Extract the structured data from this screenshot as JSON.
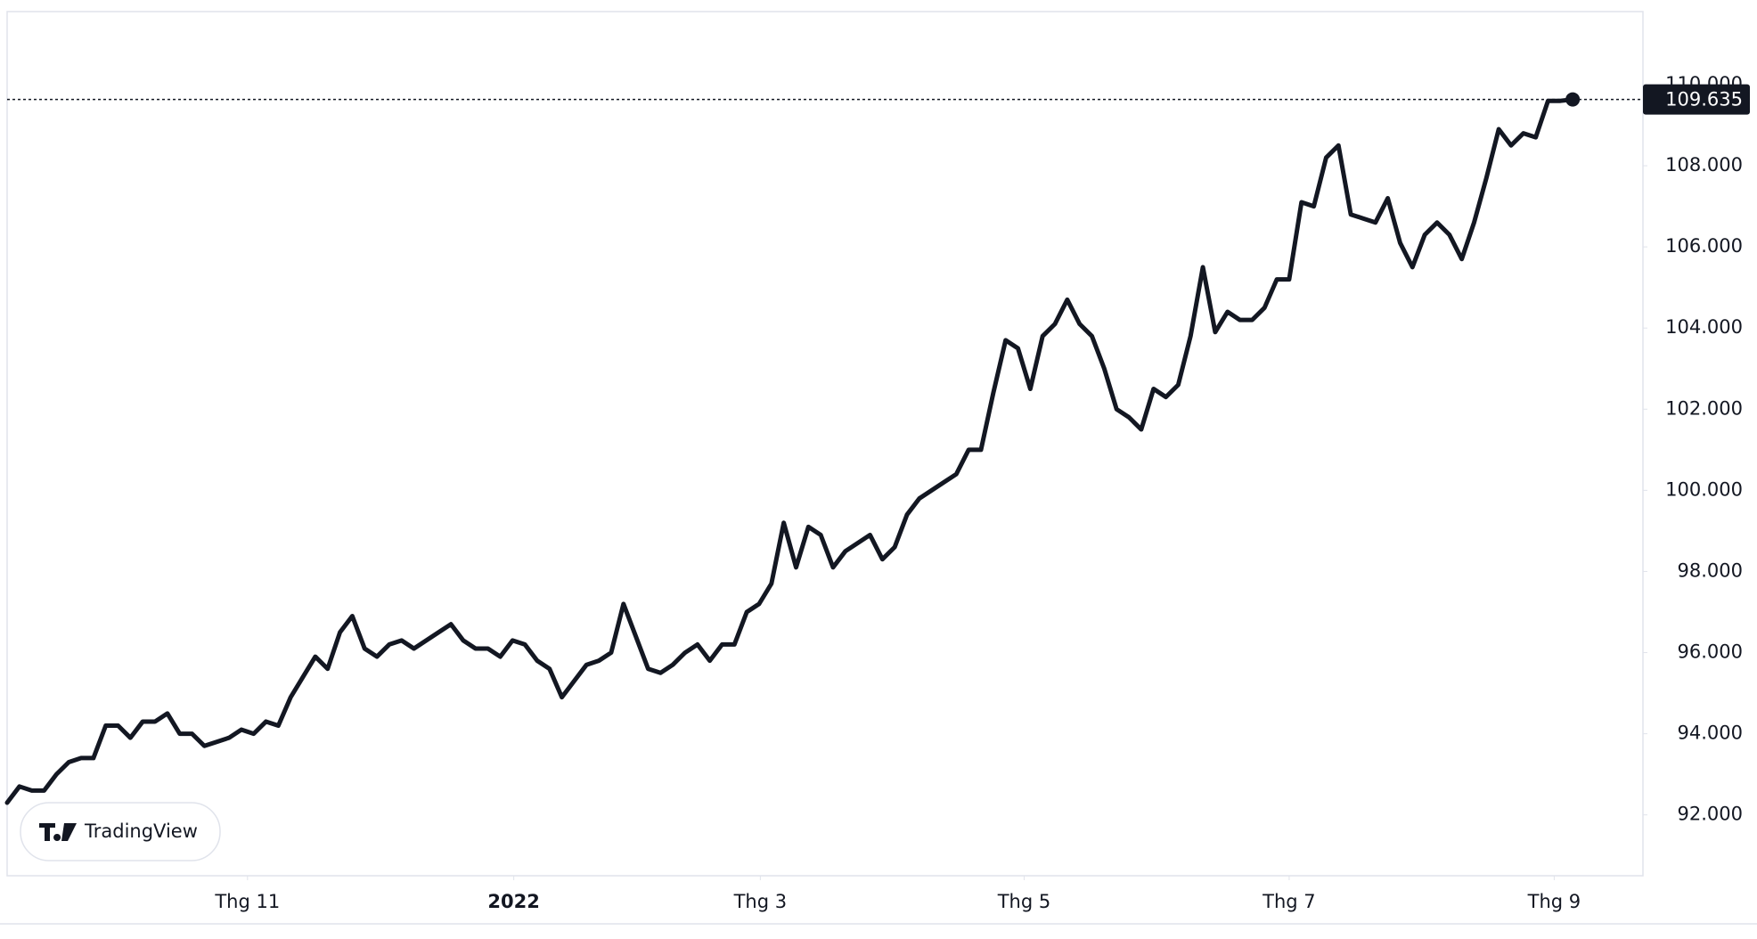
{
  "chart_data": {
    "type": "line",
    "watermark": "TradingView",
    "values": [
      92.3,
      92.7,
      92.6,
      92.6,
      93.0,
      93.3,
      93.4,
      93.4,
      94.2,
      94.2,
      93.9,
      94.3,
      94.3,
      94.5,
      94.0,
      94.0,
      93.7,
      93.8,
      93.9,
      94.1,
      94.0,
      94.3,
      94.2,
      94.9,
      95.4,
      95.9,
      95.6,
      96.5,
      96.9,
      96.1,
      95.9,
      96.2,
      96.3,
      96.1,
      96.3,
      96.5,
      96.7,
      96.3,
      96.1,
      96.1,
      95.9,
      96.3,
      96.2,
      95.8,
      95.6,
      94.9,
      95.3,
      95.7,
      95.8,
      96.0,
      97.2,
      96.4,
      95.6,
      95.5,
      95.7,
      96.0,
      96.2,
      95.8,
      96.2,
      96.2,
      97.0,
      97.2,
      97.7,
      99.2,
      98.1,
      99.1,
      98.9,
      98.1,
      98.5,
      98.7,
      98.9,
      98.3,
      98.6,
      99.4,
      99.8,
      100.0,
      100.2,
      100.4,
      101.0,
      101.0,
      102.4,
      103.7,
      103.5,
      102.5,
      103.8,
      104.1,
      104.7,
      104.1,
      103.8,
      103.0,
      102.0,
      101.8,
      101.5,
      102.5,
      102.3,
      102.6,
      103.8,
      105.5,
      103.9,
      104.4,
      104.2,
      104.2,
      104.5,
      105.2,
      105.2,
      107.1,
      107.0,
      108.2,
      108.5,
      106.8,
      106.7,
      106.6,
      107.2,
      106.1,
      105.5,
      106.3,
      106.6,
      106.3,
      105.7,
      106.6,
      107.7,
      108.9,
      108.5,
      108.8,
      108.7,
      109.6,
      109.6,
      109.635
    ],
    "color": "#131722",
    "xlim": [
      0,
      132.7
    ],
    "xticks": [
      {
        "value": 19.5,
        "label": "Thg 11"
      },
      {
        "value": 41.1,
        "label": "2022"
      },
      {
        "value": 61.1,
        "label": "Thg 3"
      },
      {
        "value": 82.5,
        "label": "Thg 5"
      },
      {
        "value": 104.0,
        "label": "Thg 7"
      },
      {
        "value": 125.5,
        "label": "Thg 9"
      }
    ],
    "ylim": [
      90.5,
      111.8
    ],
    "yticks": [
      {
        "value": 92,
        "label": "92.000"
      },
      {
        "value": 94,
        "label": "94.000"
      },
      {
        "value": 96,
        "label": "96.000"
      },
      {
        "value": 98,
        "label": "98.000"
      },
      {
        "value": 100,
        "label": "100.000"
      },
      {
        "value": 102,
        "label": "102.000"
      },
      {
        "value": 104,
        "label": "104.000"
      },
      {
        "value": 106,
        "label": "106.000"
      },
      {
        "value": 108,
        "label": "108.000"
      },
      {
        "value": 110,
        "label": "110.000"
      }
    ],
    "grid": false
  }
}
